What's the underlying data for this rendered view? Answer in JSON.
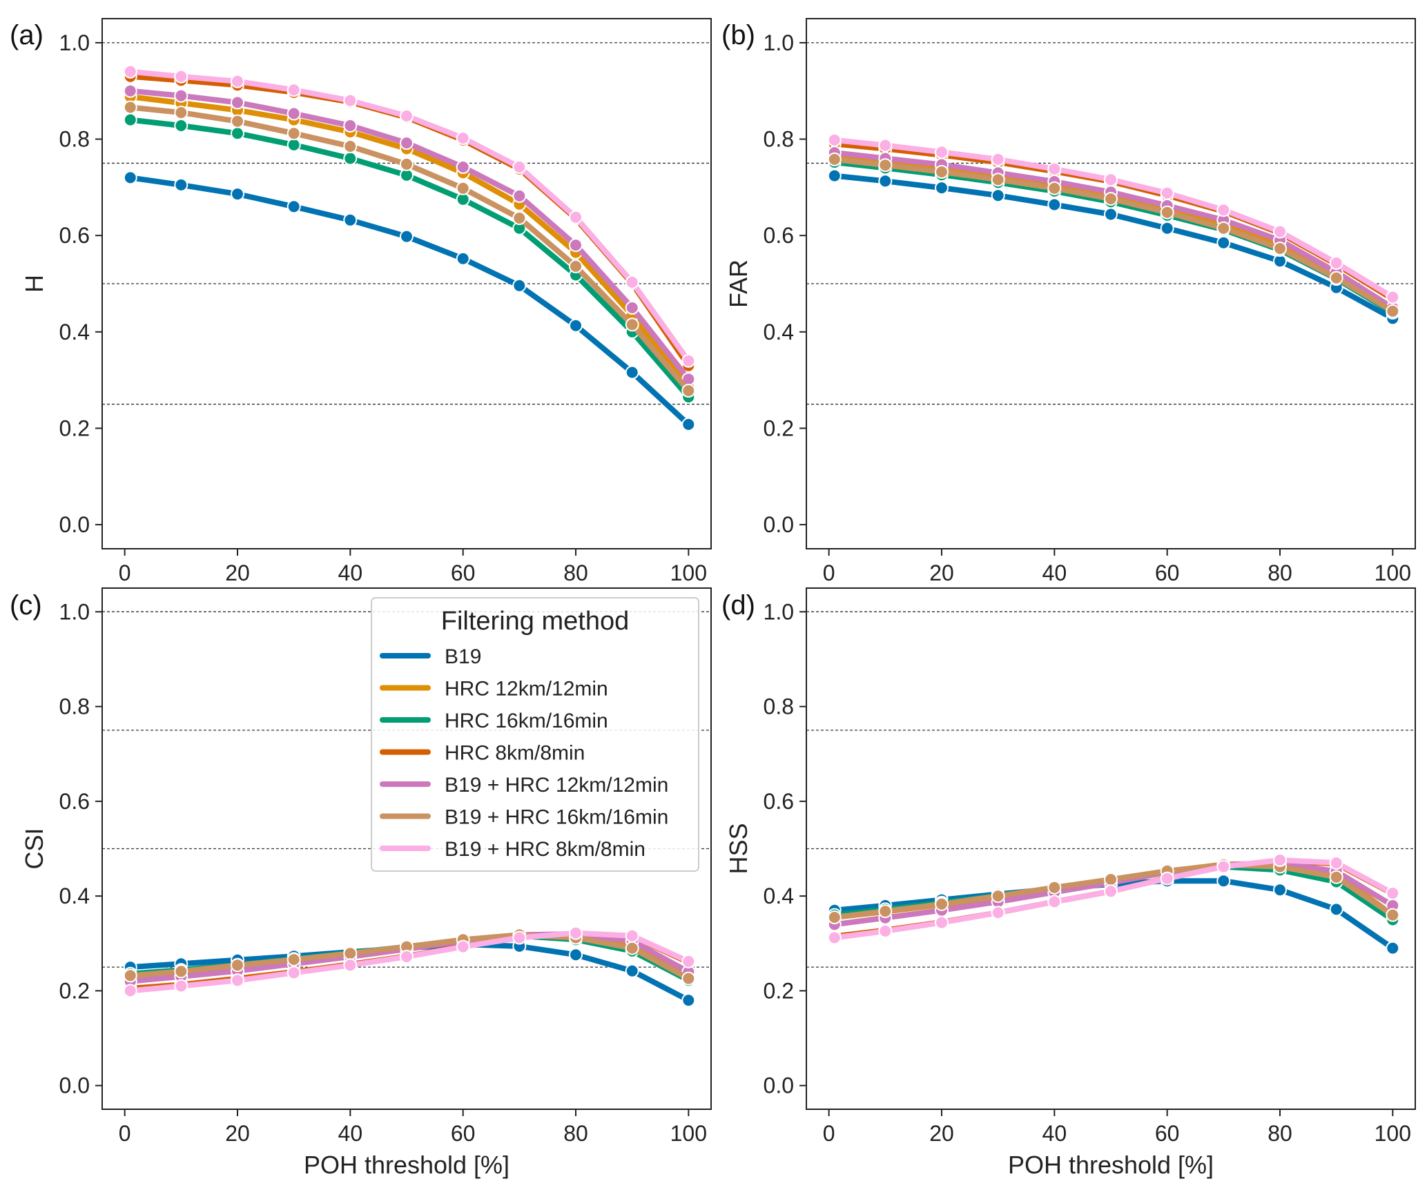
{
  "figure": {
    "xlabel": "POH threshold [%]",
    "legend": {
      "title": "Filtering method",
      "placement": "upper-right of panel (c)",
      "entries": [
        "B19",
        "HRC 12km/12min",
        "HRC 16km/16min",
        "HRC 8km/8min",
        "B19 + HRC 12km/12min",
        "B19 + HRC 16km/16min",
        "B19 + HRC 8km/8min"
      ]
    },
    "reference_lines": [
      0.25,
      0.5,
      0.75,
      1.0
    ]
  },
  "chart_data": [
    {
      "type": "line",
      "panel": "(a)",
      "ylabel": "H",
      "x": [
        1,
        10,
        20,
        30,
        40,
        50,
        60,
        70,
        80,
        90,
        100
      ],
      "xlim": [
        -4,
        104
      ],
      "ylim": [
        -0.05,
        1.05
      ],
      "xticks": [
        "0",
        "20",
        "40",
        "60",
        "80",
        "100"
      ],
      "yticks": [
        "0.0",
        "0.2",
        "0.4",
        "0.6",
        "0.8",
        "1.0"
      ],
      "series": [
        {
          "name": "B19",
          "color": "#0173b2",
          "values": [
            0.72,
            0.705,
            0.686,
            0.66,
            0.632,
            0.598,
            0.552,
            0.496,
            0.413,
            0.316,
            0.208
          ]
        },
        {
          "name": "HRC 12km/12min",
          "color": "#de8f05",
          "values": [
            0.888,
            0.875,
            0.86,
            0.84,
            0.815,
            0.78,
            0.73,
            0.665,
            0.565,
            0.435,
            0.285
          ]
        },
        {
          "name": "HRC 16km/16min",
          "color": "#029e73",
          "values": [
            0.84,
            0.828,
            0.812,
            0.788,
            0.76,
            0.725,
            0.675,
            0.615,
            0.518,
            0.4,
            0.265
          ]
        },
        {
          "name": "HRC 8km/8min",
          "color": "#d55e00",
          "values": [
            0.93,
            0.922,
            0.912,
            0.897,
            0.877,
            0.845,
            0.798,
            0.738,
            0.635,
            0.5,
            0.33
          ]
        },
        {
          "name": "B19 + HRC 12km/12min",
          "color": "#cc78bc",
          "values": [
            0.9,
            0.89,
            0.876,
            0.853,
            0.828,
            0.792,
            0.742,
            0.682,
            0.58,
            0.45,
            0.302
          ]
        },
        {
          "name": "B19 + HRC 16km/16min",
          "color": "#ca9161",
          "values": [
            0.866,
            0.855,
            0.837,
            0.812,
            0.785,
            0.748,
            0.698,
            0.636,
            0.536,
            0.415,
            0.278
          ]
        },
        {
          "name": "B19 + HRC 8km/8min",
          "color": "#fbafe4",
          "values": [
            0.94,
            0.93,
            0.92,
            0.902,
            0.88,
            0.848,
            0.802,
            0.742,
            0.638,
            0.503,
            0.34
          ]
        }
      ]
    },
    {
      "type": "line",
      "panel": "(b)",
      "ylabel": "FAR",
      "x": [
        1,
        10,
        20,
        30,
        40,
        50,
        60,
        70,
        80,
        90,
        100
      ],
      "xlim": [
        -4,
        104
      ],
      "ylim": [
        -0.05,
        1.05
      ],
      "xticks": [
        "0",
        "20",
        "40",
        "60",
        "80",
        "100"
      ],
      "yticks": [
        "0.0",
        "0.2",
        "0.4",
        "0.6",
        "0.8",
        "1.0"
      ],
      "series": [
        {
          "name": "B19",
          "color": "#0173b2",
          "values": [
            0.724,
            0.713,
            0.699,
            0.683,
            0.664,
            0.644,
            0.615,
            0.585,
            0.547,
            0.492,
            0.428
          ]
        },
        {
          "name": "HRC 12km/12min",
          "color": "#de8f05",
          "values": [
            0.762,
            0.75,
            0.736,
            0.72,
            0.702,
            0.68,
            0.652,
            0.622,
            0.58,
            0.518,
            0.448
          ]
        },
        {
          "name": "HRC 16km/16min",
          "color": "#029e73",
          "values": [
            0.752,
            0.74,
            0.726,
            0.71,
            0.692,
            0.67,
            0.642,
            0.612,
            0.57,
            0.51,
            0.44
          ]
        },
        {
          "name": "HRC 8km/8min",
          "color": "#d55e00",
          "values": [
            0.79,
            0.78,
            0.767,
            0.752,
            0.733,
            0.712,
            0.683,
            0.65,
            0.605,
            0.54,
            0.468
          ]
        },
        {
          "name": "B19 + HRC 12km/12min",
          "color": "#cc78bc",
          "values": [
            0.772,
            0.76,
            0.747,
            0.73,
            0.712,
            0.69,
            0.662,
            0.632,
            0.59,
            0.524,
            0.45
          ]
        },
        {
          "name": "B19 + HRC 16km/16min",
          "color": "#ca9161",
          "values": [
            0.758,
            0.746,
            0.732,
            0.716,
            0.698,
            0.676,
            0.648,
            0.615,
            0.573,
            0.512,
            0.443
          ]
        },
        {
          "name": "B19 + HRC 8km/8min",
          "color": "#fbafe4",
          "values": [
            0.798,
            0.787,
            0.773,
            0.758,
            0.738,
            0.716,
            0.688,
            0.653,
            0.608,
            0.543,
            0.472
          ]
        }
      ]
    },
    {
      "type": "line",
      "panel": "(c)",
      "ylabel": "CSI",
      "x": [
        1,
        10,
        20,
        30,
        40,
        50,
        60,
        70,
        80,
        90,
        100
      ],
      "xlim": [
        -4,
        104
      ],
      "ylim": [
        -0.05,
        1.05
      ],
      "xticks": [
        "0",
        "20",
        "40",
        "60",
        "80",
        "100"
      ],
      "yticks": [
        "0.0",
        "0.2",
        "0.4",
        "0.6",
        "0.8",
        "1.0"
      ],
      "series": [
        {
          "name": "B19",
          "color": "#0173b2",
          "values": [
            0.25,
            0.257,
            0.265,
            0.273,
            0.282,
            0.29,
            0.298,
            0.294,
            0.276,
            0.242,
            0.18
          ]
        },
        {
          "name": "HRC 12km/12min",
          "color": "#de8f05",
          "values": [
            0.232,
            0.24,
            0.252,
            0.265,
            0.278,
            0.292,
            0.307,
            0.318,
            0.316,
            0.294,
            0.228
          ]
        },
        {
          "name": "HRC 16km/16min",
          "color": "#029e73",
          "values": [
            0.236,
            0.244,
            0.255,
            0.267,
            0.28,
            0.293,
            0.307,
            0.316,
            0.308,
            0.284,
            0.222
          ]
        },
        {
          "name": "HRC 8km/8min",
          "color": "#d55e00",
          "values": [
            0.205,
            0.213,
            0.226,
            0.24,
            0.256,
            0.273,
            0.294,
            0.313,
            0.32,
            0.315,
            0.26
          ]
        },
        {
          "name": "B19 + HRC 12km/12min",
          "color": "#cc78bc",
          "values": [
            0.22,
            0.23,
            0.242,
            0.257,
            0.272,
            0.288,
            0.305,
            0.318,
            0.32,
            0.305,
            0.24
          ]
        },
        {
          "name": "B19 + HRC 16km/16min",
          "color": "#ca9161",
          "values": [
            0.232,
            0.241,
            0.254,
            0.266,
            0.279,
            0.293,
            0.308,
            0.318,
            0.312,
            0.29,
            0.226
          ]
        },
        {
          "name": "B19 + HRC 8km/8min",
          "color": "#fbafe4",
          "values": [
            0.2,
            0.21,
            0.222,
            0.238,
            0.254,
            0.272,
            0.293,
            0.312,
            0.322,
            0.316,
            0.262
          ]
        }
      ]
    },
    {
      "type": "line",
      "panel": "(d)",
      "ylabel": "HSS",
      "x": [
        1,
        10,
        20,
        30,
        40,
        50,
        60,
        70,
        80,
        90,
        100
      ],
      "xlim": [
        -4,
        104
      ],
      "ylim": [
        -0.05,
        1.05
      ],
      "xticks": [
        "0",
        "20",
        "40",
        "60",
        "80",
        "100"
      ],
      "yticks": [
        "0.0",
        "0.2",
        "0.4",
        "0.6",
        "0.8",
        "1.0"
      ],
      "series": [
        {
          "name": "B19",
          "color": "#0173b2",
          "values": [
            0.37,
            0.38,
            0.392,
            0.404,
            0.415,
            0.425,
            0.432,
            0.432,
            0.413,
            0.372,
            0.29
          ]
        },
        {
          "name": "HRC 12km/12min",
          "color": "#de8f05",
          "values": [
            0.355,
            0.367,
            0.382,
            0.398,
            0.415,
            0.433,
            0.452,
            0.467,
            0.468,
            0.447,
            0.36
          ]
        },
        {
          "name": "HRC 16km/16min",
          "color": "#029e73",
          "values": [
            0.36,
            0.372,
            0.386,
            0.401,
            0.417,
            0.434,
            0.452,
            0.462,
            0.455,
            0.43,
            0.35
          ]
        },
        {
          "name": "HRC 8km/8min",
          "color": "#d55e00",
          "values": [
            0.315,
            0.328,
            0.345,
            0.365,
            0.388,
            0.41,
            0.438,
            0.462,
            0.475,
            0.468,
            0.405
          ]
        },
        {
          "name": "B19 + HRC 12km/12min",
          "color": "#cc78bc",
          "values": [
            0.34,
            0.354,
            0.37,
            0.388,
            0.408,
            0.428,
            0.45,
            0.466,
            0.47,
            0.452,
            0.38
          ]
        },
        {
          "name": "B19 + HRC 16km/16min",
          "color": "#ca9161",
          "values": [
            0.355,
            0.368,
            0.383,
            0.4,
            0.418,
            0.435,
            0.453,
            0.466,
            0.462,
            0.44,
            0.36
          ]
        },
        {
          "name": "B19 + HRC 8km/8min",
          "color": "#fbafe4",
          "values": [
            0.312,
            0.326,
            0.344,
            0.365,
            0.388,
            0.41,
            0.437,
            0.462,
            0.476,
            0.47,
            0.406
          ]
        }
      ]
    }
  ]
}
